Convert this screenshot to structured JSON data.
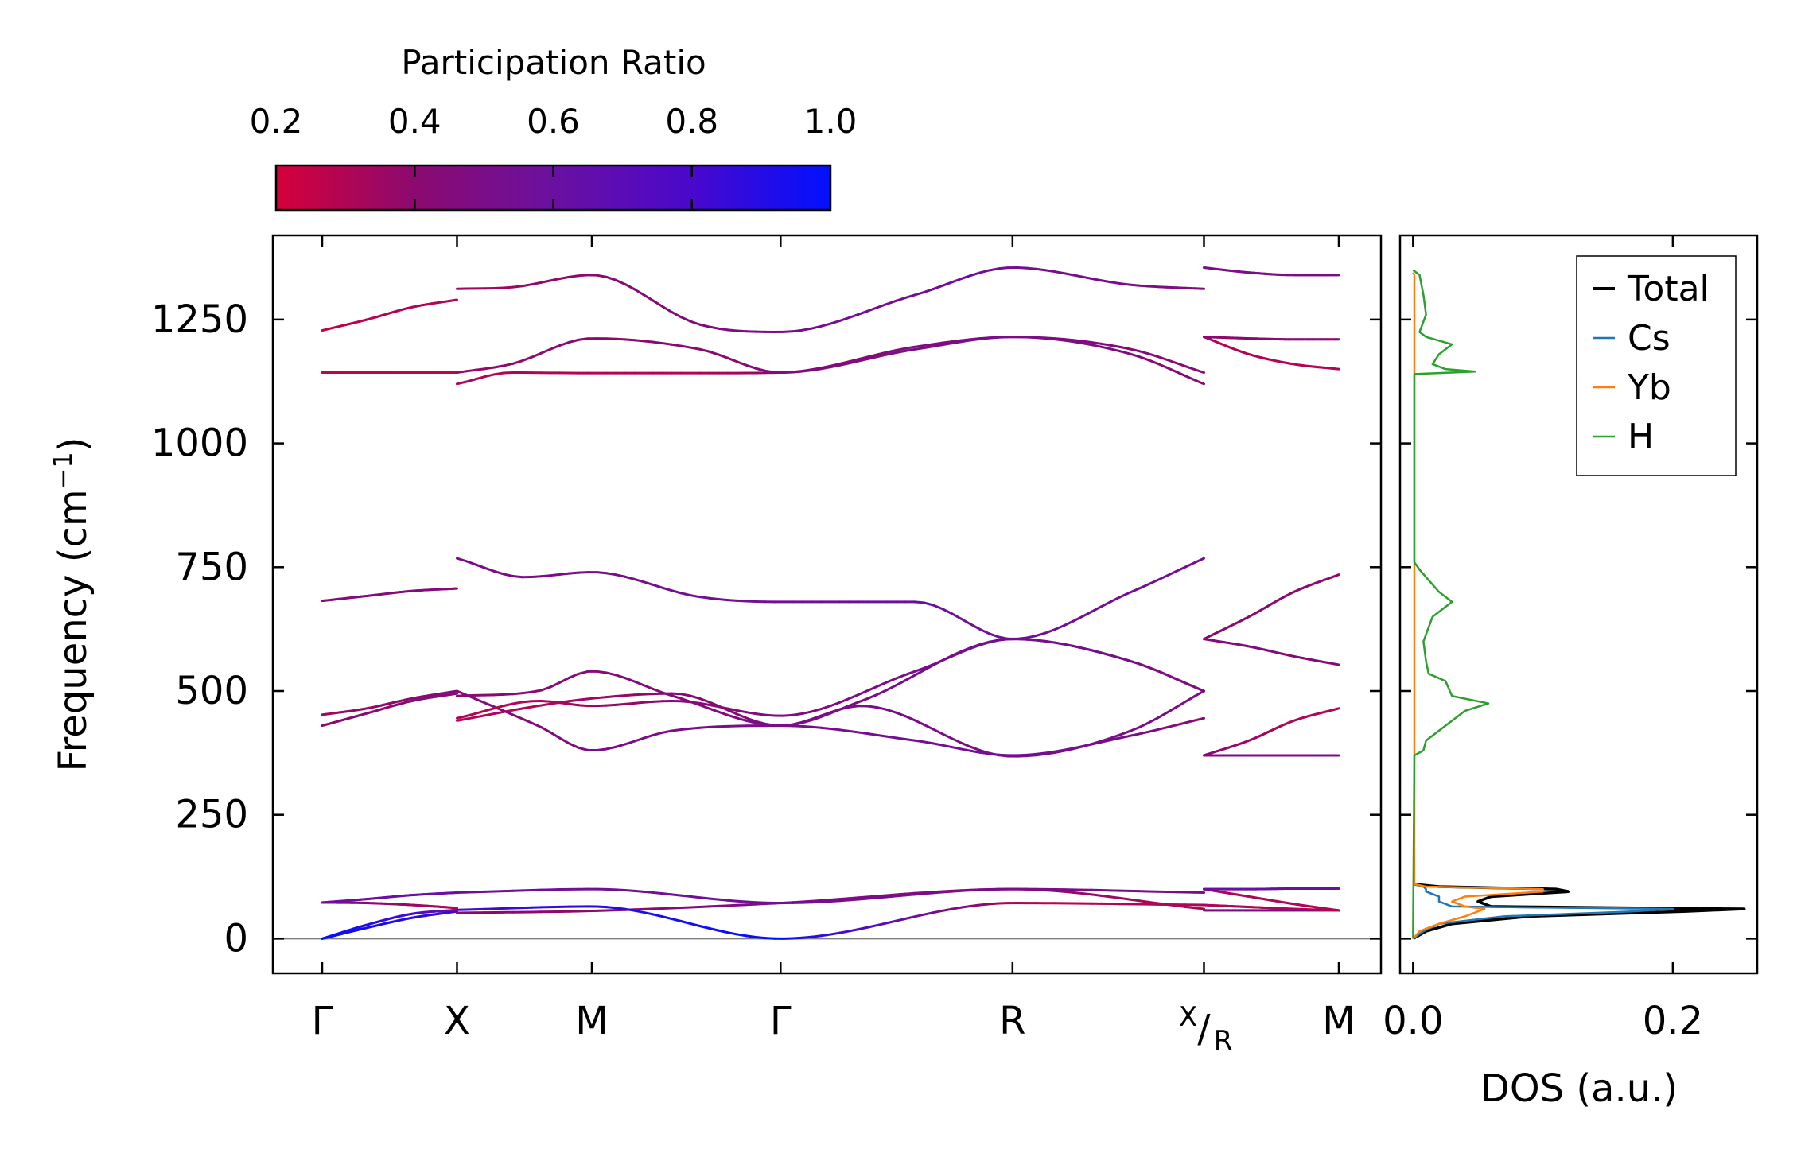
{
  "colors": {
    "cbar_low": "#d6003a",
    "cbar_mid_low": "#8b0a6f",
    "cbar_mid": "#6a10a0",
    "cbar_high": "#0010ff",
    "total": "#000000",
    "cs": "#1f77b4",
    "yb": "#ff7f0e",
    "h": "#2ca02c",
    "zero_line": "#808080"
  },
  "chart_data": [
    {
      "type": "line",
      "name": "phonon-band-structure",
      "ylabel": "Frequency (cm⁻¹)",
      "ylabel_main": "Frequency (cm",
      "ylabel_sup": "−1",
      "ylabel_close": ")",
      "ylim": [
        -70,
        1420
      ],
      "yticks": [
        0,
        250,
        500,
        750,
        1000,
        1250
      ],
      "ytick_labels": [
        "0",
        "250",
        "500",
        "750",
        "1000",
        "1250"
      ],
      "kpath_xlim": [
        0,
        4.0
      ],
      "kpoints": [
        {
          "label": "Γ",
          "x": 0.0
        },
        {
          "label": "X",
          "x": 0.5
        },
        {
          "label": "M",
          "x": 1.0
        },
        {
          "label": "Γ",
          "x": 1.7
        },
        {
          "label": "R",
          "x": 2.56
        },
        {
          "label": "X|R",
          "label_top": "X",
          "label_bottom": "R",
          "x": 3.27
        },
        {
          "label": "M",
          "x": 3.77
        }
      ],
      "colorbar": {
        "title": "Participation Ratio",
        "ticks": [
          0.2,
          0.4,
          0.6,
          0.8,
          1.0
        ],
        "tick_labels": [
          "0.2",
          "0.4",
          "0.6",
          "0.8",
          "1.0"
        ],
        "range": [
          0.2,
          1.0
        ]
      },
      "segments": [
        {
          "name": "Gamma-X",
          "x_range": [
            0.0,
            0.5
          ],
          "bands": [
            {
              "y": [
                0,
                22,
                42,
                55
              ],
              "pr": [
                1.0,
                0.95,
                0.9,
                0.85
              ]
            },
            {
              "y": [
                0,
                28,
                50,
                58
              ],
              "pr": [
                1.0,
                0.9,
                0.8,
                0.6
              ]
            },
            {
              "y": [
                73,
                72,
                68,
                62
              ],
              "pr": [
                0.45,
                0.4,
                0.35,
                0.3
              ]
            },
            {
              "y": [
                73,
                80,
                88,
                93
              ],
              "pr": [
                0.6,
                0.6,
                0.6,
                0.6
              ]
            },
            {
              "y": [
                430,
                455,
                480,
                495
              ],
              "pr": [
                0.4,
                0.4,
                0.42,
                0.45
              ]
            },
            {
              "y": [
                452,
                465,
                485,
                500
              ],
              "pr": [
                0.35,
                0.38,
                0.4,
                0.45
              ]
            },
            {
              "y": [
                682,
                692,
                702,
                707
              ],
              "pr": [
                0.45,
                0.45,
                0.45,
                0.45
              ]
            },
            {
              "y": [
                1143,
                1143,
                1143,
                1143
              ],
              "pr": [
                0.25,
                0.25,
                0.25,
                0.25
              ]
            },
            {
              "y": [
                1228,
                1250,
                1275,
                1290
              ],
              "pr": [
                0.25,
                0.28,
                0.3,
                0.3
              ]
            }
          ]
        },
        {
          "name": "X-M-Gamma-R-X",
          "x_range": [
            0.5,
            3.27
          ],
          "bands": [
            {
              "x": [
                0.5,
                1.0,
                1.7,
                2.56,
                3.27
              ],
              "y": [
                52,
                56,
                72,
                100,
                60
              ],
              "pr": [
                0.4,
                0.4,
                0.5,
                0.4,
                0.3
              ]
            },
            {
              "x": [
                0.5,
                1.0,
                1.7,
                2.56,
                3.27
              ],
              "y": [
                58,
                65,
                0,
                72,
                68
              ],
              "pr": [
                0.8,
                0.9,
                1.0,
                0.3,
                0.3
              ]
            },
            {
              "x": [
                0.5,
                1.0,
                1.7,
                2.56,
                3.27
              ],
              "y": [
                93,
                100,
                72,
                100,
                93
              ],
              "pr": [
                0.6,
                0.55,
                0.55,
                0.5,
                0.5
              ]
            },
            {
              "x": [
                0.5,
                0.8,
                1.0,
                1.3,
                1.7,
                2.0,
                2.56,
                3.0,
                3.27
              ],
              "y": [
                440,
                470,
                485,
                495,
                430,
                470,
                368,
                420,
                500
              ],
              "pr": [
                0.3,
                0.3,
                0.35,
                0.4,
                0.45,
                0.5,
                0.5,
                0.5,
                0.5
              ]
            },
            {
              "x": [
                0.5,
                0.8,
                1.0,
                1.3,
                1.7,
                2.0,
                2.56,
                3.0,
                3.27
              ],
              "y": [
                490,
                500,
                540,
                490,
                430,
                480,
                605,
                560,
                500
              ],
              "pr": [
                0.4,
                0.4,
                0.45,
                0.45,
                0.5,
                0.5,
                0.55,
                0.5,
                0.5
              ]
            },
            {
              "x": [
                0.5,
                0.8,
                1.0,
                1.3,
                1.7,
                2.2,
                2.56,
                3.0,
                3.27
              ],
              "y": [
                500,
                430,
                380,
                420,
                430,
                400,
                370,
                410,
                445
              ],
              "pr": [
                0.45,
                0.45,
                0.5,
                0.5,
                0.5,
                0.55,
                0.55,
                0.5,
                0.4
              ]
            },
            {
              "x": [
                0.5,
                0.8,
                1.0,
                1.3,
                1.7,
                2.2,
                2.56,
                3.0,
                3.27
              ],
              "y": [
                445,
                480,
                470,
                480,
                450,
                540,
                605,
                560,
                500
              ],
              "pr": [
                0.3,
                0.3,
                0.35,
                0.4,
                0.45,
                0.5,
                0.55,
                0.5,
                0.45
              ]
            },
            {
              "x": [
                0.5,
                0.75,
                1.0,
                1.4,
                1.7,
                2.2,
                2.56,
                3.0,
                3.27
              ],
              "y": [
                768,
                730,
                740,
                690,
                680,
                680,
                605,
                700,
                768
              ],
              "pr": [
                0.5,
                0.5,
                0.5,
                0.55,
                0.55,
                0.6,
                0.55,
                0.55,
                0.55
              ]
            },
            {
              "x": [
                0.5,
                0.7,
                1.0,
                1.4,
                1.7,
                2.2,
                2.56,
                3.0,
                3.27
              ],
              "y": [
                1120,
                1143,
                1142,
                1142,
                1143,
                1195,
                1215,
                1180,
                1120
              ],
              "pr": [
                0.3,
                0.3,
                0.3,
                0.3,
                0.4,
                0.45,
                0.5,
                0.45,
                0.4
              ]
            },
            {
              "x": [
                0.5,
                0.7,
                1.0,
                1.4,
                1.7,
                2.2,
                2.56,
                3.0,
                3.27
              ],
              "y": [
                1143,
                1160,
                1212,
                1190,
                1143,
                1190,
                1215,
                1190,
                1143
              ],
              "pr": [
                0.35,
                0.4,
                0.4,
                0.4,
                0.45,
                0.5,
                0.5,
                0.45,
                0.4
              ]
            },
            {
              "x": [
                0.5,
                0.7,
                1.0,
                1.4,
                1.7,
                2.2,
                2.56,
                3.0,
                3.27
              ],
              "y": [
                1312,
                1315,
                1340,
                1240,
                1225,
                1300,
                1355,
                1320,
                1312
              ],
              "pr": [
                0.35,
                0.35,
                0.4,
                0.45,
                0.5,
                0.55,
                0.55,
                0.5,
                0.45
              ]
            }
          ]
        },
        {
          "name": "R-M",
          "x_range": [
            3.27,
            3.77
          ],
          "bands": [
            {
              "y": [
                57,
                57,
                57,
                57
              ],
              "pr": [
                0.5,
                0.5,
                0.5,
                0.5
              ]
            },
            {
              "y": [
                68,
                64,
                60,
                57
              ],
              "pr": [
                0.3,
                0.3,
                0.3,
                0.3
              ]
            },
            {
              "y": [
                100,
                85,
                70,
                57
              ],
              "pr": [
                0.3,
                0.3,
                0.3,
                0.3
              ]
            },
            {
              "y": [
                100,
                100,
                101,
                101
              ],
              "pr": [
                0.6,
                0.6,
                0.6,
                0.6
              ]
            },
            {
              "y": [
                370,
                370,
                370,
                370
              ],
              "pr": [
                0.5,
                0.5,
                0.5,
                0.5
              ]
            },
            {
              "y": [
                370,
                400,
                440,
                465
              ],
              "pr": [
                0.4,
                0.35,
                0.3,
                0.3
              ]
            },
            {
              "y": [
                605,
                590,
                570,
                553
              ],
              "pr": [
                0.45,
                0.45,
                0.45,
                0.45
              ]
            },
            {
              "y": [
                605,
                650,
                700,
                735
              ],
              "pr": [
                0.4,
                0.4,
                0.4,
                0.4
              ]
            },
            {
              "y": [
                1215,
                1180,
                1160,
                1150
              ],
              "pr": [
                0.3,
                0.3,
                0.3,
                0.3
              ]
            },
            {
              "y": [
                1215,
                1212,
                1210,
                1210
              ],
              "pr": [
                0.4,
                0.4,
                0.4,
                0.4
              ]
            },
            {
              "y": [
                1355,
                1345,
                1340,
                1340
              ],
              "pr": [
                0.5,
                0.5,
                0.5,
                0.5
              ]
            }
          ]
        }
      ]
    },
    {
      "type": "line",
      "name": "dos",
      "xlabel": "DOS (a.u.)",
      "xlim": [
        -0.01,
        0.265
      ],
      "xticks": [
        0.0,
        0.2
      ],
      "xtick_labels": [
        "0.0",
        "0.2"
      ],
      "legend": [
        "Total",
        "Cs",
        "Yb",
        "H"
      ],
      "legend_position": "top-right",
      "series": [
        {
          "name": "Total",
          "freq": [
            0,
            15,
            30,
            45,
            55,
            60,
            65,
            75,
            85,
            95,
            100,
            105,
            110
          ],
          "dos": [
            0,
            0.01,
            0.03,
            0.09,
            0.21,
            0.255,
            0.06,
            0.05,
            0.06,
            0.12,
            0.11,
            0.02,
            0
          ]
        },
        {
          "name": "Cs",
          "freq": [
            0,
            15,
            30,
            45,
            55,
            60,
            65,
            75,
            85,
            95,
            100,
            105,
            110
          ],
          "dos": [
            0,
            0.008,
            0.02,
            0.07,
            0.17,
            0.2,
            0.03,
            0.02,
            0.02,
            0.01,
            0.01,
            0.008,
            0
          ]
        },
        {
          "name": "Yb",
          "freq": [
            0,
            15,
            30,
            45,
            55,
            60,
            65,
            75,
            85,
            95,
            100,
            105,
            110,
            200,
            400,
            1000,
            1340,
            1345
          ],
          "dos": [
            0,
            0.005,
            0.02,
            0.04,
            0.05,
            0.055,
            0.04,
            0.03,
            0.04,
            0.1,
            0.1,
            0.01,
            0.001,
            0.001,
            0.001,
            0.001,
            0.001,
            0
          ]
        },
        {
          "name": "H",
          "freq": [
            0,
            370,
            380,
            400,
            430,
            460,
            475,
            490,
            520,
            535,
            560,
            600,
            650,
            680,
            700,
            745,
            760,
            1140,
            1145,
            1150,
            1160,
            1180,
            1200,
            1215,
            1225,
            1260,
            1300,
            1340,
            1350
          ],
          "dos": [
            0,
            0.001,
            0.008,
            0.01,
            0.025,
            0.04,
            0.058,
            0.03,
            0.025,
            0.012,
            0.01,
            0.008,
            0.015,
            0.03,
            0.02,
            0.005,
            0.001,
            0.001,
            0.048,
            0.025,
            0.015,
            0.02,
            0.03,
            0.01,
            0.005,
            0.01,
            0.008,
            0.005,
            0
          ]
        }
      ]
    }
  ]
}
